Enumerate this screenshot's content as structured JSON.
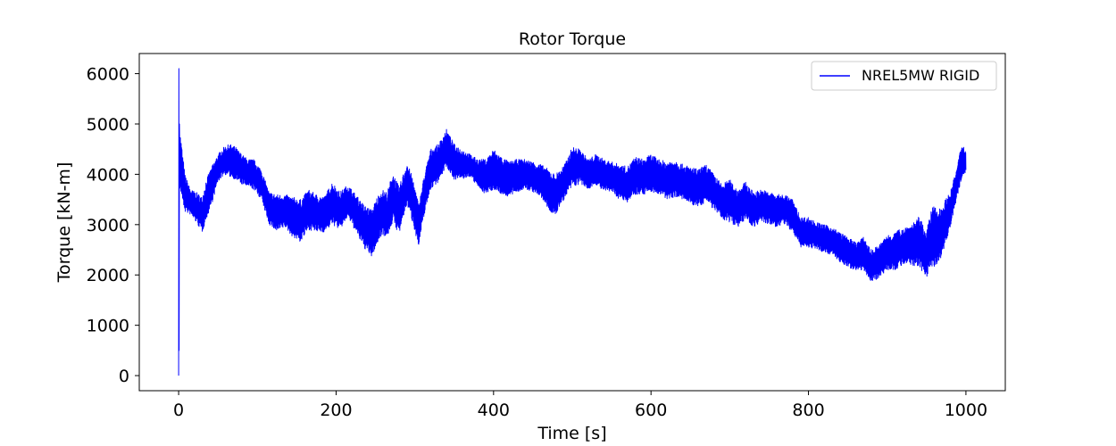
{
  "chart_data": {
    "type": "line",
    "title": "Rotor Torque",
    "xlabel": "Time [s]",
    "ylabel": "Torque [kN-m]",
    "xlim": [
      -50,
      1050
    ],
    "ylim": [
      -300,
      6400
    ],
    "xticks": [
      0,
      200,
      400,
      600,
      800,
      1000
    ],
    "yticks": [
      0,
      1000,
      2000,
      3000,
      4000,
      5000,
      6000
    ],
    "legend_position": "top-right",
    "grid": false,
    "series": [
      {
        "name": "NREL5MW RIGID",
        "color": "#0000ff",
        "envelope_t": [
          0,
          3,
          8,
          15,
          22,
          30,
          35,
          42,
          50,
          58,
          65,
          72,
          80,
          88,
          95,
          105,
          115,
          125,
          135,
          145,
          155,
          165,
          175,
          185,
          195,
          205,
          215,
          225,
          235,
          245,
          252,
          258,
          265,
          272,
          280,
          290,
          298,
          305,
          312,
          320,
          330,
          340,
          350,
          360,
          370,
          380,
          390,
          400,
          410,
          420,
          430,
          440,
          450,
          460,
          470,
          478,
          485,
          492,
          500,
          510,
          520,
          530,
          540,
          550,
          560,
          570,
          580,
          590,
          600,
          610,
          620,
          630,
          640,
          650,
          660,
          670,
          680,
          690,
          700,
          710,
          720,
          730,
          740,
          750,
          760,
          770,
          780,
          790,
          800,
          810,
          820,
          830,
          840,
          850,
          860,
          870,
          880,
          890,
          900,
          910,
          920,
          930,
          940,
          950,
          958,
          965,
          972,
          980,
          988,
          995,
          1000
        ],
        "envelope_low": [
          3800,
          3600,
          3250,
          3200,
          3050,
          2850,
          3100,
          3400,
          3850,
          4000,
          3950,
          3900,
          3800,
          3750,
          3700,
          3500,
          3000,
          2850,
          2950,
          2750,
          2650,
          2900,
          2850,
          2850,
          3000,
          2900,
          3150,
          2850,
          2550,
          2350,
          2600,
          2800,
          2750,
          3050,
          2800,
          3400,
          3000,
          2550,
          3200,
          3700,
          3850,
          4150,
          3900,
          3900,
          3950,
          3750,
          3600,
          3700,
          3600,
          3550,
          3650,
          3700,
          3650,
          3550,
          3300,
          3150,
          3400,
          3550,
          3750,
          3800,
          3700,
          3800,
          3650,
          3650,
          3500,
          3450,
          3600,
          3600,
          3650,
          3600,
          3500,
          3550,
          3500,
          3400,
          3350,
          3450,
          3300,
          3100,
          3050,
          2950,
          3100,
          2950,
          3050,
          3000,
          2950,
          3000,
          2850,
          2550,
          2550,
          2500,
          2450,
          2400,
          2250,
          2150,
          2100,
          2100,
          1850,
          1950,
          2100,
          2100,
          2200,
          2200,
          2150,
          1950,
          2200,
          2100,
          2500,
          2950,
          3500,
          3950,
          4050
        ],
        "envelope_high": [
          5050,
          4700,
          4000,
          3700,
          3650,
          3550,
          3900,
          4150,
          4400,
          4550,
          4600,
          4550,
          4400,
          4300,
          4300,
          4100,
          3650,
          3600,
          3600,
          3550,
          3500,
          3700,
          3600,
          3550,
          3850,
          3650,
          3800,
          3600,
          3400,
          3300,
          3550,
          3700,
          3650,
          4050,
          3750,
          4250,
          3900,
          3400,
          4000,
          4500,
          4600,
          4900,
          4600,
          4500,
          4400,
          4300,
          4300,
          4500,
          4350,
          4250,
          4300,
          4300,
          4250,
          4200,
          4100,
          4000,
          4100,
          4250,
          4550,
          4500,
          4300,
          4400,
          4300,
          4250,
          4200,
          4150,
          4350,
          4300,
          4400,
          4300,
          4250,
          4300,
          4200,
          4150,
          4100,
          4200,
          4000,
          3800,
          3900,
          3700,
          3850,
          3650,
          3700,
          3650,
          3600,
          3600,
          3500,
          3150,
          3150,
          3050,
          3000,
          2950,
          2850,
          2750,
          2650,
          2750,
          2500,
          2600,
          2800,
          2850,
          2950,
          3000,
          3150,
          2900,
          3400,
          3300,
          3450,
          3650,
          4100,
          4650,
          4450
        ]
      }
    ]
  }
}
